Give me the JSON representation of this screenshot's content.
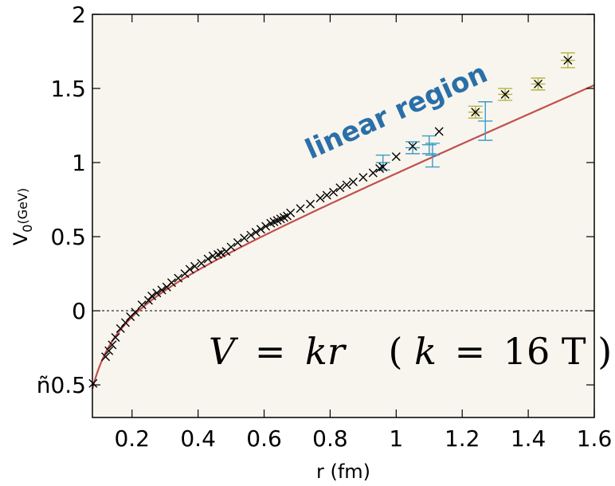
{
  "chart_data": {
    "type": "scatter",
    "xlabel": "r (fm)",
    "ylabel_main": "V",
    "ylabel_sub": "0",
    "ylabel_unit": "(GeV)",
    "xlim": [
      0.08,
      1.6
    ],
    "ylim": [
      -0.72,
      2.0
    ],
    "x_ticks": [
      0.2,
      0.4,
      0.6,
      0.8,
      1,
      1.2,
      1.4,
      1.6
    ],
    "x_tick_labels": [
      "0.2",
      "0.4",
      "0.6",
      "0.8",
      "1",
      "1.2",
      "1.4",
      "1.6"
    ],
    "y_ticks": [
      -0.5,
      0,
      0.5,
      1,
      1.5,
      2
    ],
    "y_tick_labels": [
      "ñ0.5",
      "0",
      "0.5",
      "1",
      "1.5",
      "2"
    ],
    "annotation": "linear region",
    "formula": {
      "lhs": "V",
      "eq": "=",
      "rhs": "kr",
      "open": "(",
      "k": "k",
      "eq2": "=",
      "value": "16 T",
      "close": ")"
    },
    "grid": false,
    "background": "#f8f5ee",
    "colors": {
      "fit_curve": "#c0504d",
      "markers": "#000000",
      "errorbar_blue": "#3b9cc9",
      "errorbar_olive": "#b4b43c",
      "annotation": "#2a6fa8"
    },
    "fit_curve": {
      "model": "cornell",
      "sigma_GeV2": 0.19,
      "alpha": 0.25
    },
    "series": [
      {
        "marker": "x",
        "x": [
          0.082,
          0.12,
          0.13,
          0.14,
          0.15,
          0.165,
          0.18,
          0.195,
          0.21,
          0.23,
          0.25,
          0.26,
          0.275,
          0.29,
          0.305,
          0.32,
          0.34,
          0.36,
          0.375,
          0.39,
          0.41,
          0.43,
          0.445,
          0.46,
          0.47,
          0.485,
          0.5,
          0.52,
          0.54,
          0.56,
          0.575,
          0.59,
          0.605,
          0.62,
          0.63,
          0.64,
          0.65,
          0.66,
          0.67,
          0.68,
          0.71,
          0.74,
          0.77,
          0.79,
          0.81,
          0.83,
          0.85,
          0.87,
          0.9,
          0.93,
          0.95,
          0.96,
          1.0,
          1.05,
          1.13,
          1.24,
          1.33,
          1.43,
          1.52
        ],
        "y": [
          -0.49,
          -0.31,
          -0.27,
          -0.23,
          -0.18,
          -0.12,
          -0.08,
          -0.04,
          -0.01,
          0.04,
          0.07,
          0.1,
          0.12,
          0.14,
          0.16,
          0.19,
          0.22,
          0.25,
          0.28,
          0.3,
          0.32,
          0.35,
          0.37,
          0.38,
          0.39,
          0.4,
          0.43,
          0.46,
          0.49,
          0.51,
          0.53,
          0.55,
          0.57,
          0.59,
          0.6,
          0.61,
          0.62,
          0.63,
          0.64,
          0.66,
          0.69,
          0.72,
          0.76,
          0.78,
          0.8,
          0.83,
          0.85,
          0.87,
          0.9,
          0.93,
          0.96,
          0.97,
          1.04,
          1.11,
          1.21,
          1.34,
          1.46,
          1.53,
          1.69
        ]
      },
      {
        "marker": "errorbar",
        "color": "blue",
        "x": [
          0.96,
          1.05,
          1.1,
          1.11,
          1.27
        ],
        "y": [
          1.0,
          1.1,
          1.12,
          1.05,
          1.28
        ],
        "err": [
          0.05,
          0.04,
          0.06,
          0.08,
          0.13
        ]
      },
      {
        "marker": "errorbar",
        "color": "olive",
        "x": [
          1.24,
          1.33,
          1.43,
          1.52
        ],
        "y": [
          1.34,
          1.46,
          1.53,
          1.69
        ],
        "err": [
          0.04,
          0.04,
          0.04,
          0.05
        ]
      }
    ]
  }
}
